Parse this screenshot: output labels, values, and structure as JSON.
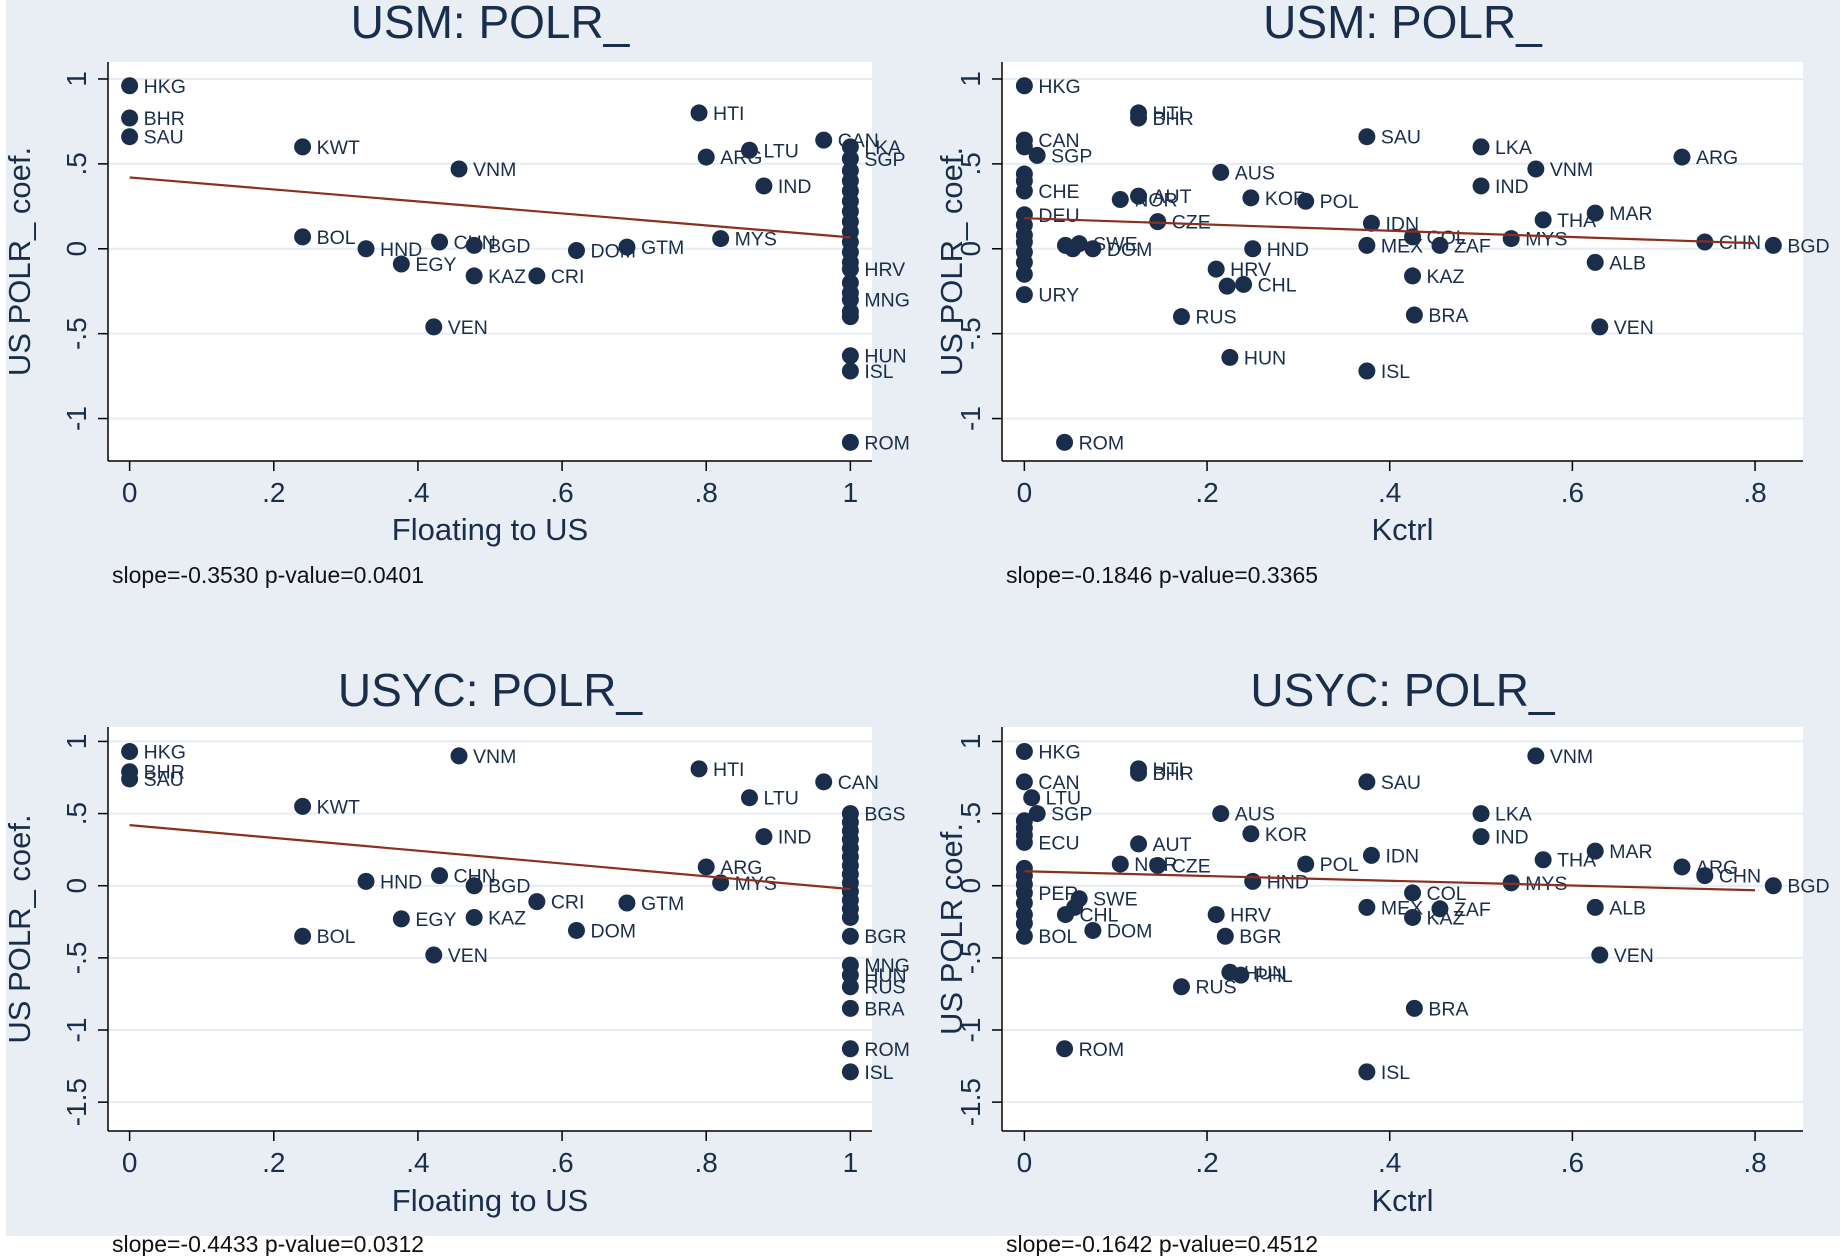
{
  "colors": {
    "background": "#e8eef4",
    "plot_area": "#ffffff",
    "marker": "#1a2e4c",
    "fit_line": "#8b2f1f",
    "text": "#1a2e4c"
  },
  "chart_data": [
    {
      "type": "scatter",
      "title": "USM: POLR_",
      "xlabel": "Floating to US",
      "ylabel": "US POLR_ coef.",
      "xlim": [
        -0.03,
        1.03
      ],
      "ylim": [
        -1.25,
        1.1
      ],
      "xticks": [
        0,
        0.2,
        0.4,
        0.6,
        0.8,
        1
      ],
      "xtick_labels": [
        "0",
        ".2",
        ".4",
        ".6",
        ".8",
        "1"
      ],
      "yticks": [
        1,
        0.5,
        0,
        -0.5,
        -1
      ],
      "ytick_labels": [
        "1",
        ".5",
        "0",
        "-.5",
        "-1"
      ],
      "grid": true,
      "fit": {
        "slope": -0.353,
        "intercept": 0.42
      },
      "footnote": "slope=-0.3530 p-value=0.0401",
      "points": [
        {
          "label": "HKG",
          "x": 0,
          "y": 0.96
        },
        {
          "label": "BHR",
          "x": 0,
          "y": 0.77
        },
        {
          "label": "SAU",
          "x": 0,
          "y": 0.66
        },
        {
          "label": "KWT",
          "x": 0.24,
          "y": 0.6
        },
        {
          "label": "VNM",
          "x": 0.457,
          "y": 0.47
        },
        {
          "label": "HTI",
          "x": 0.79,
          "y": 0.8
        },
        {
          "label": "ARG",
          "x": 0.8,
          "y": 0.54
        },
        {
          "label": "LTU",
          "x": 0.86,
          "y": 0.58
        },
        {
          "label": "IND",
          "x": 0.88,
          "y": 0.37
        },
        {
          "label": "CAN",
          "x": 0.963,
          "y": 0.64
        },
        {
          "label": "BOL",
          "x": 0.24,
          "y": 0.07
        },
        {
          "label": "HND",
          "x": 0.328,
          "y": 0.0
        },
        {
          "label": "CHN",
          "x": 0.43,
          "y": 0.04
        },
        {
          "label": "EGY",
          "x": 0.377,
          "y": -0.09
        },
        {
          "label": "BGD",
          "x": 0.478,
          "y": 0.02
        },
        {
          "label": "KAZ",
          "x": 0.478,
          "y": -0.16
        },
        {
          "label": "CRI",
          "x": 0.565,
          "y": -0.16
        },
        {
          "label": "DOM",
          "x": 0.62,
          "y": -0.01
        },
        {
          "label": "GTM",
          "x": 0.69,
          "y": 0.01
        },
        {
          "label": "MYS",
          "x": 0.82,
          "y": 0.06
        },
        {
          "label": "VEN",
          "x": 0.422,
          "y": -0.46
        },
        {
          "label": "LKA",
          "x": 1,
          "y": 0.6
        },
        {
          "label": "SGP",
          "x": 1,
          "y": 0.53
        },
        {
          "label": "",
          "x": 1,
          "y": 0.46
        },
        {
          "label": "",
          "x": 1,
          "y": 0.4
        },
        {
          "label": "",
          "x": 1,
          "y": 0.34
        },
        {
          "label": "",
          "x": 1,
          "y": 0.28
        },
        {
          "label": "",
          "x": 1,
          "y": 0.22
        },
        {
          "label": "",
          "x": 1,
          "y": 0.16
        },
        {
          "label": "",
          "x": 1,
          "y": 0.1
        },
        {
          "label": "",
          "x": 1,
          "y": 0.04
        },
        {
          "label": "",
          "x": 1,
          "y": -0.02
        },
        {
          "label": "",
          "x": 1,
          "y": -0.08
        },
        {
          "label": "HRV",
          "x": 1,
          "y": -0.12
        },
        {
          "label": "",
          "x": 1,
          "y": -0.2
        },
        {
          "label": "",
          "x": 1,
          "y": -0.26
        },
        {
          "label": "MNG",
          "x": 1,
          "y": -0.3
        },
        {
          "label": "",
          "x": 1,
          "y": -0.37
        },
        {
          "label": "",
          "x": 1,
          "y": -0.4
        },
        {
          "label": "HUN",
          "x": 1,
          "y": -0.63
        },
        {
          "label": "ISL",
          "x": 1,
          "y": -0.72
        },
        {
          "label": "ROM",
          "x": 1,
          "y": -1.14
        }
      ]
    },
    {
      "type": "scatter",
      "title": "USM: POLR_",
      "xlabel": "Kctrl",
      "ylabel": "US POLR_ coef.",
      "xlim": [
        -0.0245,
        0.8525
      ],
      "ylim": [
        -1.25,
        1.1
      ],
      "xticks": [
        0,
        0.2,
        0.4,
        0.6,
        0.8
      ],
      "xtick_labels": [
        "0",
        ".2",
        ".4",
        ".6",
        ".8"
      ],
      "yticks": [
        1,
        0.5,
        0,
        -0.5,
        -1
      ],
      "ytick_labels": [
        "1",
        ".5",
        "0",
        "-.5",
        "-1"
      ],
      "grid": true,
      "fit": {
        "slope": -0.1846,
        "intercept": 0.18
      },
      "footnote": "slope=-0.1846 p-value=0.3365",
      "points": [
        {
          "label": "HKG",
          "x": 0,
          "y": 0.96
        },
        {
          "label": "CAN",
          "x": 0,
          "y": 0.64
        },
        {
          "label": "",
          "x": 0,
          "y": 0.6
        },
        {
          "label": "SGP",
          "x": 0.014,
          "y": 0.55
        },
        {
          "label": "",
          "x": 0,
          "y": 0.44
        },
        {
          "label": "",
          "x": 0,
          "y": 0.4
        },
        {
          "label": "CHE",
          "x": 0,
          "y": 0.34
        },
        {
          "label": "DEU",
          "x": 0,
          "y": 0.2
        },
        {
          "label": "",
          "x": 0,
          "y": 0.14
        },
        {
          "label": "",
          "x": 0,
          "y": 0.08
        },
        {
          "label": "",
          "x": 0,
          "y": 0.04
        },
        {
          "label": "",
          "x": 0,
          "y": -0.02
        },
        {
          "label": "",
          "x": 0,
          "y": -0.08
        },
        {
          "label": "",
          "x": 0,
          "y": -0.15
        },
        {
          "label": "URY",
          "x": 0,
          "y": -0.27
        },
        {
          "label": "",
          "x": 0.045,
          "y": 0.02
        },
        {
          "label": "",
          "x": 0.053,
          "y": 0.0
        },
        {
          "label": "SWE",
          "x": 0.06,
          "y": 0.03
        },
        {
          "label": "DOM",
          "x": 0.075,
          "y": 0.0
        },
        {
          "label": "ROM",
          "x": 0.044,
          "y": -1.14
        },
        {
          "label": "HTI",
          "x": 0.125,
          "y": 0.8
        },
        {
          "label": "BHR",
          "x": 0.125,
          "y": 0.77
        },
        {
          "label": "AUT",
          "x": 0.125,
          "y": 0.31
        },
        {
          "label": "NOR",
          "x": 0.105,
          "y": 0.29
        },
        {
          "label": "CZE",
          "x": 0.146,
          "y": 0.16
        },
        {
          "label": "AUS",
          "x": 0.215,
          "y": 0.45
        },
        {
          "label": "KOR",
          "x": 0.248,
          "y": 0.3
        },
        {
          "label": "POL",
          "x": 0.308,
          "y": 0.28
        },
        {
          "label": "HND",
          "x": 0.25,
          "y": 0.0
        },
        {
          "label": "HRV",
          "x": 0.21,
          "y": -0.12
        },
        {
          "label": "CHL",
          "x": 0.24,
          "y": -0.21
        },
        {
          "label": "",
          "x": 0.222,
          "y": -0.22
        },
        {
          "label": "RUS",
          "x": 0.172,
          "y": -0.4
        },
        {
          "label": "HUN",
          "x": 0.225,
          "y": -0.64
        },
        {
          "label": "SAU",
          "x": 0.375,
          "y": 0.66
        },
        {
          "label": "IDN",
          "x": 0.38,
          "y": 0.15
        },
        {
          "label": "MEX",
          "x": 0.375,
          "y": 0.02
        },
        {
          "label": "COL",
          "x": 0.425,
          "y": 0.07
        },
        {
          "label": "ZAF",
          "x": 0.455,
          "y": 0.02
        },
        {
          "label": "KAZ",
          "x": 0.425,
          "y": -0.16
        },
        {
          "label": "BRA",
          "x": 0.427,
          "y": -0.39
        },
        {
          "label": "ISL",
          "x": 0.375,
          "y": -0.72
        },
        {
          "label": "LKA",
          "x": 0.5,
          "y": 0.6
        },
        {
          "label": "IND",
          "x": 0.5,
          "y": 0.37
        },
        {
          "label": "VNM",
          "x": 0.56,
          "y": 0.47
        },
        {
          "label": "THA",
          "x": 0.568,
          "y": 0.17
        },
        {
          "label": "MYS",
          "x": 0.533,
          "y": 0.06
        },
        {
          "label": "MAR",
          "x": 0.625,
          "y": 0.21
        },
        {
          "label": "ALB",
          "x": 0.625,
          "y": -0.08
        },
        {
          "label": "VEN",
          "x": 0.63,
          "y": -0.46
        },
        {
          "label": "ARG",
          "x": 0.72,
          "y": 0.54
        },
        {
          "label": "CHN",
          "x": 0.745,
          "y": 0.04
        },
        {
          "label": "BGD",
          "x": 0.82,
          "y": 0.02
        }
      ]
    },
    {
      "type": "scatter",
      "title": "USYC: POLR_",
      "xlabel": "Floating to US",
      "ylabel": "US POLR_ coef.",
      "xlim": [
        -0.03,
        1.03
      ],
      "ylim": [
        -1.7,
        1.1
      ],
      "xticks": [
        0,
        0.2,
        0.4,
        0.6,
        0.8,
        1
      ],
      "xtick_labels": [
        "0",
        ".2",
        ".4",
        ".6",
        ".8",
        "1"
      ],
      "yticks": [
        1,
        0.5,
        0,
        -0.5,
        -1,
        -1.5
      ],
      "ytick_labels": [
        "1",
        ".5",
        "0",
        "-.5",
        "-1",
        "-1.5"
      ],
      "grid": true,
      "fit": {
        "slope": -0.4433,
        "intercept": 0.42
      },
      "footnote": "slope=-0.4433 p-value=0.0312",
      "points": [
        {
          "label": "HKG",
          "x": 0,
          "y": 0.93
        },
        {
          "label": "BHR",
          "x": 0,
          "y": 0.79
        },
        {
          "label": "SAU",
          "x": 0,
          "y": 0.74
        },
        {
          "label": "KWT",
          "x": 0.24,
          "y": 0.55
        },
        {
          "label": "VNM",
          "x": 0.457,
          "y": 0.9
        },
        {
          "label": "HTI",
          "x": 0.79,
          "y": 0.81
        },
        {
          "label": "CAN",
          "x": 0.963,
          "y": 0.72
        },
        {
          "label": "LTU",
          "x": 0.86,
          "y": 0.61
        },
        {
          "label": "IND",
          "x": 0.88,
          "y": 0.34
        },
        {
          "label": "ARG",
          "x": 0.8,
          "y": 0.13
        },
        {
          "label": "MYS",
          "x": 0.82,
          "y": 0.02
        },
        {
          "label": "HND",
          "x": 0.328,
          "y": 0.03
        },
        {
          "label": "CHN",
          "x": 0.43,
          "y": 0.07
        },
        {
          "label": "BGD",
          "x": 0.478,
          "y": 0.0
        },
        {
          "label": "CRI",
          "x": 0.565,
          "y": -0.11
        },
        {
          "label": "GTM",
          "x": 0.69,
          "y": -0.12
        },
        {
          "label": "EGY",
          "x": 0.377,
          "y": -0.23
        },
        {
          "label": "KAZ",
          "x": 0.478,
          "y": -0.22
        },
        {
          "label": "DOM",
          "x": 0.62,
          "y": -0.31
        },
        {
          "label": "BOL",
          "x": 0.24,
          "y": -0.35
        },
        {
          "label": "VEN",
          "x": 0.422,
          "y": -0.48
        },
        {
          "label": "BGS",
          "x": 1,
          "y": 0.5
        },
        {
          "label": "",
          "x": 1,
          "y": 0.44
        },
        {
          "label": "",
          "x": 1,
          "y": 0.38
        },
        {
          "label": "",
          "x": 1,
          "y": 0.32
        },
        {
          "label": "",
          "x": 1,
          "y": 0.26
        },
        {
          "label": "",
          "x": 1,
          "y": 0.2
        },
        {
          "label": "",
          "x": 1,
          "y": 0.14
        },
        {
          "label": "",
          "x": 1,
          "y": 0.08
        },
        {
          "label": "",
          "x": 1,
          "y": 0.02
        },
        {
          "label": "",
          "x": 1,
          "y": -0.04
        },
        {
          "label": "",
          "x": 1,
          "y": -0.1
        },
        {
          "label": "",
          "x": 1,
          "y": -0.16
        },
        {
          "label": "",
          "x": 1,
          "y": -0.22
        },
        {
          "label": "BGR",
          "x": 1,
          "y": -0.35
        },
        {
          "label": "MNG",
          "x": 1,
          "y": -0.55
        },
        {
          "label": "HUN",
          "x": 1,
          "y": -0.62
        },
        {
          "label": "RUS",
          "x": 1,
          "y": -0.7
        },
        {
          "label": "BRA",
          "x": 1,
          "y": -0.85
        },
        {
          "label": "ROM",
          "x": 1,
          "y": -1.13
        },
        {
          "label": "ISL",
          "x": 1,
          "y": -1.29
        }
      ]
    },
    {
      "type": "scatter",
      "title": "USYC: POLR_",
      "xlabel": "Kctrl",
      "ylabel": "US POLR coef.",
      "xlim": [
        -0.0245,
        0.8525
      ],
      "ylim": [
        -1.7,
        1.1
      ],
      "xticks": [
        0,
        0.2,
        0.4,
        0.6,
        0.8
      ],
      "xtick_labels": [
        "0",
        ".2",
        ".4",
        ".6",
        ".8"
      ],
      "yticks": [
        1,
        0.5,
        0,
        -0.5,
        -1,
        -1.5
      ],
      "ytick_labels": [
        "1",
        ".5",
        "0",
        "-.5",
        "-1",
        "-1.5"
      ],
      "grid": true,
      "fit": {
        "slope": -0.1642,
        "intercept": 0.1
      },
      "footnote": "slope=-0.1642 p-value=0.4512",
      "points": [
        {
          "label": "HKG",
          "x": 0,
          "y": 0.93
        },
        {
          "label": "CAN",
          "x": 0,
          "y": 0.72
        },
        {
          "label": "LTU",
          "x": 0.008,
          "y": 0.61
        },
        {
          "label": "SGP",
          "x": 0.014,
          "y": 0.5
        },
        {
          "label": "",
          "x": 0,
          "y": 0.45
        },
        {
          "label": "",
          "x": 0,
          "y": 0.4
        },
        {
          "label": "",
          "x": 0,
          "y": 0.35
        },
        {
          "label": "ECU",
          "x": 0,
          "y": 0.3
        },
        {
          "label": "",
          "x": 0,
          "y": 0.12
        },
        {
          "label": "",
          "x": 0,
          "y": 0.07
        },
        {
          "label": "",
          "x": 0,
          "y": 0.01
        },
        {
          "label": "PER",
          "x": 0,
          "y": -0.05
        },
        {
          "label": "",
          "x": 0,
          "y": -0.12
        },
        {
          "label": "",
          "x": 0,
          "y": -0.2
        },
        {
          "label": "",
          "x": 0,
          "y": -0.26
        },
        {
          "label": "BOL",
          "x": 0,
          "y": -0.35
        },
        {
          "label": "SWE",
          "x": 0.06,
          "y": -0.09
        },
        {
          "label": "CHL",
          "x": 0.045,
          "y": -0.2
        },
        {
          "label": "",
          "x": 0.055,
          "y": -0.15
        },
        {
          "label": "DOM",
          "x": 0.075,
          "y": -0.31
        },
        {
          "label": "ROM",
          "x": 0.044,
          "y": -1.13
        },
        {
          "label": "HTI",
          "x": 0.125,
          "y": 0.81
        },
        {
          "label": "BHR",
          "x": 0.125,
          "y": 0.78
        },
        {
          "label": "AUT",
          "x": 0.125,
          "y": 0.29
        },
        {
          "label": "NOR",
          "x": 0.105,
          "y": 0.15
        },
        {
          "label": "CZE",
          "x": 0.146,
          "y": 0.14
        },
        {
          "label": "AUS",
          "x": 0.215,
          "y": 0.5
        },
        {
          "label": "KOR",
          "x": 0.248,
          "y": 0.36
        },
        {
          "label": "POL",
          "x": 0.308,
          "y": 0.15
        },
        {
          "label": "HND",
          "x": 0.25,
          "y": 0.03
        },
        {
          "label": "HRV",
          "x": 0.21,
          "y": -0.2
        },
        {
          "label": "BGR",
          "x": 0.22,
          "y": -0.35
        },
        {
          "label": "HUN",
          "x": 0.225,
          "y": -0.6
        },
        {
          "label": "PHL",
          "x": 0.237,
          "y": -0.62
        },
        {
          "label": "RUS",
          "x": 0.172,
          "y": -0.7
        },
        {
          "label": "SAU",
          "x": 0.375,
          "y": 0.72
        },
        {
          "label": "IDN",
          "x": 0.38,
          "y": 0.21
        },
        {
          "label": "MEX",
          "x": 0.375,
          "y": -0.15
        },
        {
          "label": "COL",
          "x": 0.425,
          "y": -0.05
        },
        {
          "label": "KAZ",
          "x": 0.425,
          "y": -0.22
        },
        {
          "label": "ZAF",
          "x": 0.455,
          "y": -0.16
        },
        {
          "label": "BRA",
          "x": 0.427,
          "y": -0.85
        },
        {
          "label": "ISL",
          "x": 0.375,
          "y": -1.29
        },
        {
          "label": "VNM",
          "x": 0.56,
          "y": 0.9
        },
        {
          "label": "LKA",
          "x": 0.5,
          "y": 0.5
        },
        {
          "label": "IND",
          "x": 0.5,
          "y": 0.34
        },
        {
          "label": "THA",
          "x": 0.568,
          "y": 0.18
        },
        {
          "label": "MYS",
          "x": 0.533,
          "y": 0.02
        },
        {
          "label": "MAR",
          "x": 0.625,
          "y": 0.24
        },
        {
          "label": "ALB",
          "x": 0.625,
          "y": -0.15
        },
        {
          "label": "VEN",
          "x": 0.63,
          "y": -0.48
        },
        {
          "label": "ARG",
          "x": 0.72,
          "y": 0.13
        },
        {
          "label": "CHN",
          "x": 0.745,
          "y": 0.07
        },
        {
          "label": "BGD",
          "x": 0.82,
          "y": 0.0
        }
      ]
    }
  ]
}
